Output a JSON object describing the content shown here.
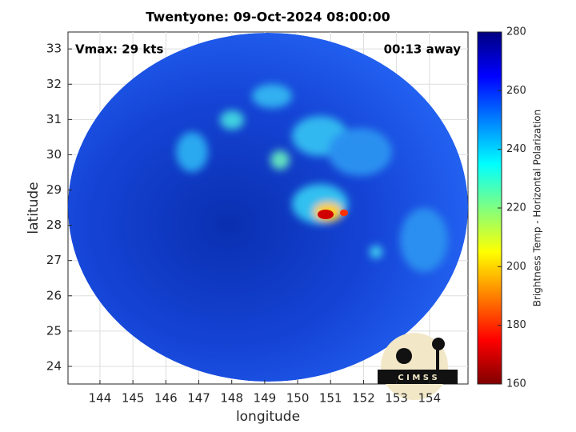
{
  "chart_data": {
    "type": "image",
    "title": "Twentyone: 09-Oct-2024 08:00:00",
    "annotations": [
      "Vmax: 29 kts",
      "00:13 away"
    ],
    "xlabel": "longitude",
    "ylabel": "latitude",
    "xlim": [
      143.03,
      155.17
    ],
    "xticks": [
      144,
      145,
      146,
      147,
      148,
      149,
      150,
      151,
      152,
      153,
      154
    ],
    "ylim": [
      23.5,
      33.48
    ],
    "yticks": [
      24,
      25,
      26,
      27,
      28,
      29,
      30,
      31,
      32,
      33
    ],
    "grid": true,
    "colorbar": {
      "label": "Brightness Temp - Horizontal Polarization",
      "lim": [
        160,
        280
      ],
      "ticks": [
        160,
        180,
        200,
        220,
        240,
        260,
        280
      ],
      "colormap": [
        "#800000",
        "#ff0000",
        "#ff8000",
        "#ffff00",
        "#80ff80",
        "#00ffff",
        "#0080ff",
        "#0000ff",
        "#000080"
      ]
    },
    "logo": "C I M S S"
  }
}
